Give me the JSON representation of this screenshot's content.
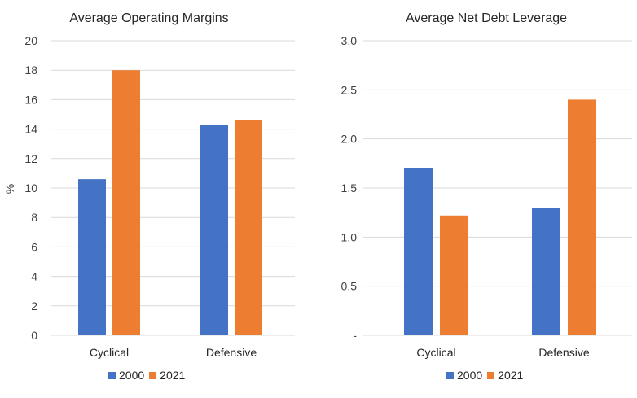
{
  "chart_data": [
    {
      "type": "bar",
      "title": "Average Operating Margins",
      "ylabel": "%",
      "xlabel": "",
      "categories": [
        "Cyclical",
        "Defensive"
      ],
      "series": [
        {
          "name": "2000",
          "values": [
            10.6,
            14.3
          ],
          "color": "#4472c4"
        },
        {
          "name": "2021",
          "values": [
            18.0,
            14.6
          ],
          "color": "#ed7d31"
        }
      ],
      "ylim": [
        0,
        20
      ],
      "yticks": [
        "0",
        "2",
        "4",
        "6",
        "8",
        "10",
        "12",
        "14",
        "16",
        "18",
        "20"
      ],
      "grid": true,
      "legend": "bottom"
    },
    {
      "type": "bar",
      "title": "Average Net Debt Leverage",
      "ylabel": "",
      "xlabel": "",
      "categories": [
        "Cyclical",
        "Defensive"
      ],
      "series": [
        {
          "name": "2000",
          "values": [
            1.7,
            1.3
          ],
          "color": "#4472c4"
        },
        {
          "name": "2021",
          "values": [
            1.22,
            2.4
          ],
          "color": "#ed7d31"
        }
      ],
      "ylim": [
        0,
        3.0
      ],
      "yticks": [
        "-",
        "0.5",
        "1.0",
        "1.5",
        "2.0",
        "2.5",
        "3.0"
      ],
      "grid": true,
      "legend": "bottom"
    }
  ]
}
